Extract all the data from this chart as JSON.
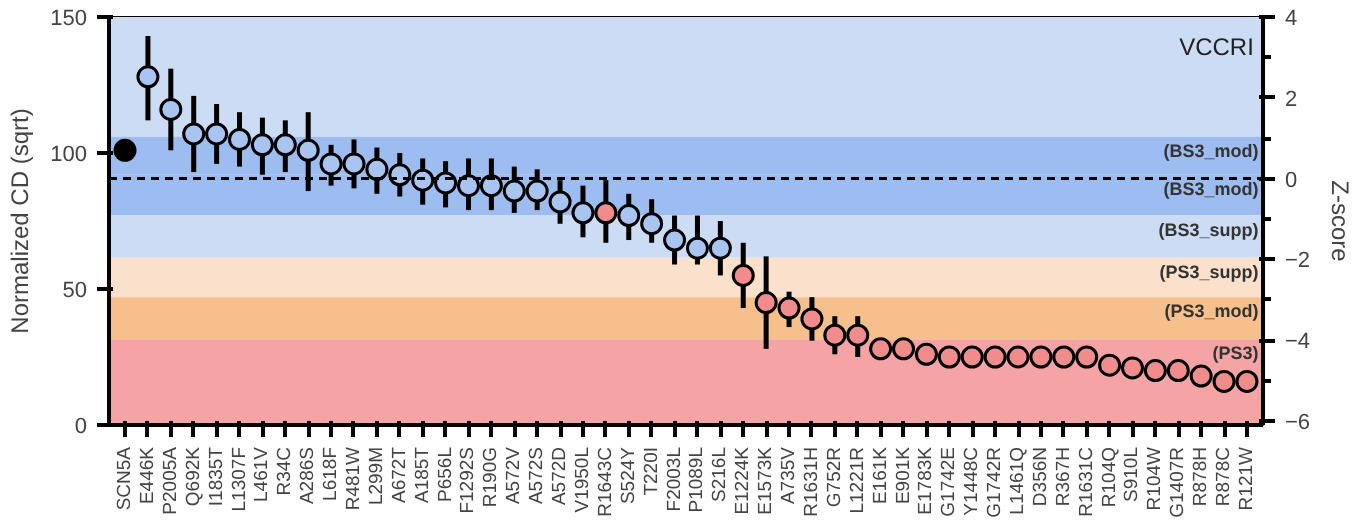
{
  "chart_data": {
    "type": "scatter",
    "ylabel": "Normalized CD (sqrt)",
    "y2label": "Z-score",
    "annotations": [
      "VCCRI"
    ],
    "categories": [
      "SCN5A",
      "E446K",
      "P2005A",
      "Q692K",
      "I1835T",
      "L1307F",
      "L461V",
      "R34C",
      "A286S",
      "L618F",
      "R481W",
      "L299M",
      "A672T",
      "A185T",
      "P656L",
      "F1292S",
      "R190G",
      "A572V",
      "A572S",
      "A572D",
      "V1950L",
      "R1643C",
      "S524Y",
      "T220I",
      "F2003L",
      "P1089L",
      "S216L",
      "E1224K",
      "E1573K",
      "A735V",
      "R1631H",
      "G752R",
      "L1221R",
      "E161K",
      "E901K",
      "E1783K",
      "G1742E",
      "Y1448C",
      "G1742R",
      "L1461Q",
      "D356N",
      "R367H",
      "R1631C",
      "R104Q",
      "S910L",
      "R104W",
      "G1407R",
      "R878H",
      "R878C",
      "R121W"
    ],
    "values": [
      101,
      128,
      116,
      107,
      107,
      105,
      103,
      103,
      101,
      96,
      96,
      94,
      92,
      90,
      89,
      88,
      88,
      86,
      86,
      82,
      78,
      78,
      77,
      74,
      68,
      65,
      65,
      55,
      45,
      43,
      39,
      33,
      33,
      28,
      28,
      26,
      25,
      25,
      25,
      25,
      25,
      25,
      25,
      22,
      21,
      20,
      20,
      18,
      16,
      16
    ],
    "errors": [
      null,
      [
        112,
        143
      ],
      [
        101,
        131
      ],
      [
        93,
        121
      ],
      [
        96,
        118
      ],
      [
        95,
        115
      ],
      [
        92,
        113
      ],
      [
        93,
        112
      ],
      [
        86,
        115
      ],
      [
        88,
        103
      ],
      [
        87,
        105
      ],
      [
        85,
        102
      ],
      [
        84,
        100
      ],
      [
        81,
        98
      ],
      [
        80,
        97
      ],
      [
        79,
        98
      ],
      [
        79,
        98
      ],
      [
        78,
        95
      ],
      [
        79,
        94
      ],
      [
        74,
        90
      ],
      [
        69,
        88
      ],
      [
        67,
        90
      ],
      [
        68,
        85
      ],
      [
        67,
        83
      ],
      [
        59,
        77
      ],
      [
        59,
        77
      ],
      [
        55,
        75
      ],
      [
        43,
        67
      ],
      [
        28,
        62
      ],
      [
        36,
        49
      ],
      [
        31,
        47
      ],
      [
        26,
        40
      ],
      [
        25,
        40
      ],
      null,
      null,
      null,
      null,
      null,
      null,
      null,
      null,
      null,
      null,
      null,
      null,
      null,
      null,
      null,
      null,
      null
    ],
    "colors": [
      "#000000",
      "#a8c4f0",
      "#a8c4f0",
      "#a8c4f0",
      "#a8c4f0",
      "#a8c4f0",
      "#a8c4f0",
      "#a8c4f0",
      "#a8c4f0",
      "#a8c4f0",
      "#a8c4f0",
      "#a8c4f0",
      "#a8c4f0",
      "#a8c4f0",
      "#a8c4f0",
      "#a8c4f0",
      "#a8c4f0",
      "#a8c4f0",
      "#a8c4f0",
      "#a8c4f0",
      "#a8c4f0",
      "#f08c8c",
      "#a8c4f0",
      "#a8c4f0",
      "#a8c4f0",
      "#a8c4f0",
      "#a8c4f0",
      "#f08c8c",
      "#f08c8c",
      "#f08c8c",
      "#f08c8c",
      "#f08c8c",
      "#f08c8c",
      "#f08c8c",
      "#f08c8c",
      "#f08c8c",
      "#f08c8c",
      "#f08c8c",
      "#f08c8c",
      "#f08c8c",
      "#f08c8c",
      "#f08c8c",
      "#f08c8c",
      "#f08c8c",
      "#f08c8c",
      "#f08c8c",
      "#f08c8c",
      "#f08c8c",
      "#f08c8c",
      "#f08c8c"
    ],
    "ylim": [
      0,
      150
    ],
    "yticks": [
      0,
      50,
      100,
      150
    ],
    "y2lim": [
      -6.1,
      4
    ],
    "y2ticks": [
      -6,
      -4,
      -2,
      0,
      2,
      4
    ],
    "bands": [
      {
        "axis": "y",
        "from": 106,
        "to": 150,
        "label": null,
        "color": "#cddcf5"
      },
      {
        "axis": "y",
        "from": 92,
        "to": 106,
        "label": "(BS3_mod)",
        "color": "#9dbcf0"
      },
      {
        "axis": "y",
        "from": 77,
        "to": 92,
        "label": "(BS3_mod)",
        "color": "#9dbcf0"
      },
      {
        "axis": "y",
        "from": 61.5,
        "to": 77,
        "label": "(BS3_supp)",
        "color": "#cddcf5"
      },
      {
        "axis": "y",
        "from": 47,
        "to": 61.5,
        "label": "(PS3_supp)",
        "color": "#fbe0cc"
      },
      {
        "axis": "y",
        "from": 31.5,
        "to": 47,
        "label": "(PS3_mod)",
        "color": "#f5c08c"
      },
      {
        "axis": "y",
        "from": 0,
        "to": 31.5,
        "label": "(PS3)",
        "color": "#f4a4a4"
      }
    ],
    "ref_lines": [
      {
        "axis": "y2",
        "value": 0,
        "label": null,
        "line_style": "dashed",
        "color": "#000000"
      }
    ],
    "grid": false,
    "marker": "circle"
  }
}
